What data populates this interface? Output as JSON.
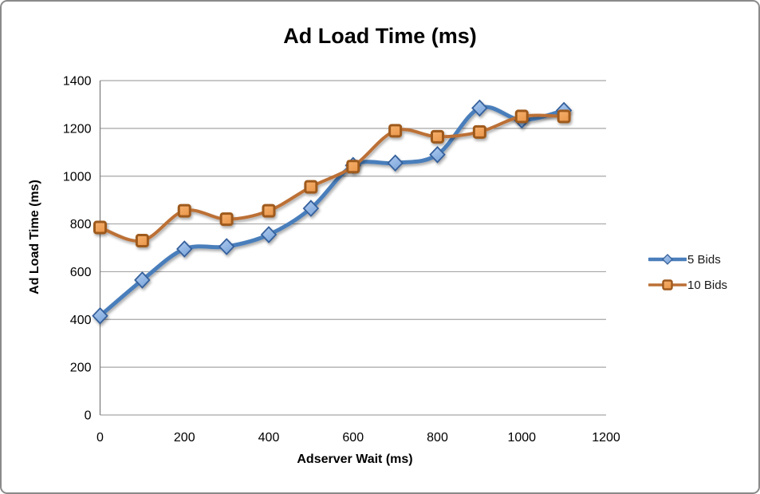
{
  "chart_data": {
    "type": "line",
    "title": "Ad Load Time (ms)",
    "xlabel": "Adserver Wait (ms)",
    "ylabel": "Ad Load Time (ms)",
    "x": [
      0,
      100,
      200,
      300,
      400,
      500,
      600,
      700,
      800,
      900,
      1000,
      1100
    ],
    "xlim": [
      0,
      1200
    ],
    "ylim": [
      0,
      1400
    ],
    "xticks": [
      0,
      200,
      400,
      600,
      800,
      1000,
      1200
    ],
    "yticks": [
      0,
      200,
      400,
      600,
      800,
      1000,
      1200,
      1400
    ],
    "grid": true,
    "smooth": true,
    "legend_position": "right",
    "series": [
      {
        "name": "5 Bids",
        "marker": "diamond",
        "line_color": "#4A7EBB",
        "marker_fill": "#7FA8DC",
        "marker_fill_light": "#AFCBEF",
        "marker_stroke": "#36619C",
        "values": [
          415,
          565,
          695,
          705,
          755,
          865,
          1045,
          1055,
          1090,
          1285,
          1235,
          1275
        ]
      },
      {
        "name": "10 Bids",
        "marker": "square",
        "line_color": "#BC7036",
        "marker_fill": "#EC9A4E",
        "marker_fill_light": "#F5B06E",
        "marker_stroke": "#9E5A1E",
        "values": [
          785,
          730,
          855,
          820,
          855,
          955,
          1040,
          1190,
          1165,
          1185,
          1250,
          1250
        ]
      }
    ],
    "colors": {
      "gridline": "#A6A6A6",
      "axis_line": "#808080",
      "text": "#000000",
      "background": "#FFFFFF",
      "border": "#8A8A8A"
    }
  }
}
